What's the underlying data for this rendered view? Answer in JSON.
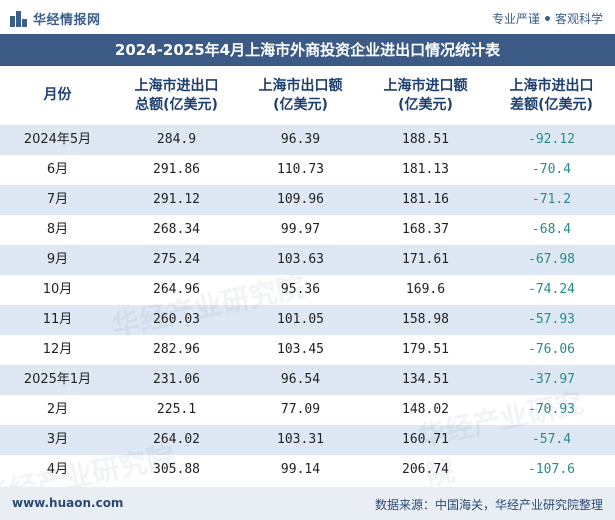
{
  "brand": {
    "logo_text": "华经情报网",
    "tagline_left": "专业严谨",
    "tagline_right": "客观科学"
  },
  "title": "2024-2025年4月上海市外商投资企业进出口情况统计表",
  "headers": {
    "month": "月份",
    "total_line1": "上海市进出口",
    "total_line2": "总额(亿美元)",
    "export_line1": "上海市出口额",
    "export_line2": "(亿美元)",
    "import_line1": "上海市进口额",
    "import_line2": "(亿美元)",
    "balance_line1": "上海市进出口",
    "balance_line2": "差额(亿美元)"
  },
  "rows": [
    {
      "month": "2024年5月",
      "total": "284.9",
      "export": "96.39",
      "import": "188.51",
      "balance": "-92.12"
    },
    {
      "month": "6月",
      "total": "291.86",
      "export": "110.73",
      "import": "181.13",
      "balance": "-70.4"
    },
    {
      "month": "7月",
      "total": "291.12",
      "export": "109.96",
      "import": "181.16",
      "balance": "-71.2"
    },
    {
      "month": "8月",
      "total": "268.34",
      "export": "99.97",
      "import": "168.37",
      "balance": "-68.4"
    },
    {
      "month": "9月",
      "total": "275.24",
      "export": "103.63",
      "import": "171.61",
      "balance": "-67.98"
    },
    {
      "month": "10月",
      "total": "264.96",
      "export": "95.36",
      "import": "169.6",
      "balance": "-74.24"
    },
    {
      "month": "11月",
      "total": "260.03",
      "export": "101.05",
      "import": "158.98",
      "balance": "-57.93"
    },
    {
      "month": "12月",
      "total": "282.96",
      "export": "103.45",
      "import": "179.51",
      "balance": "-76.06"
    },
    {
      "month": "2025年1月",
      "total": "231.06",
      "export": "96.54",
      "import": "134.51",
      "balance": "-37.97"
    },
    {
      "month": "2月",
      "total": "225.1",
      "export": "77.09",
      "import": "148.02",
      "balance": "-70.93"
    },
    {
      "month": "3月",
      "total": "264.02",
      "export": "103.31",
      "import": "160.71",
      "balance": "-57.4"
    },
    {
      "month": "4月",
      "total": "305.88",
      "export": "99.14",
      "import": "206.74",
      "balance": "-107.6"
    }
  ],
  "footer": {
    "website": "www.huaon.com",
    "source": "数据来源：中国海关，华经产业研究院整理"
  },
  "watermark": "华经产业研究院",
  "colors": {
    "title_bg": "#3b5b86",
    "stripe": "#dde8f4",
    "header_text": "#1e3f6e",
    "negative": "#2a8a8a",
    "footer_bg": "#e9eef5"
  }
}
